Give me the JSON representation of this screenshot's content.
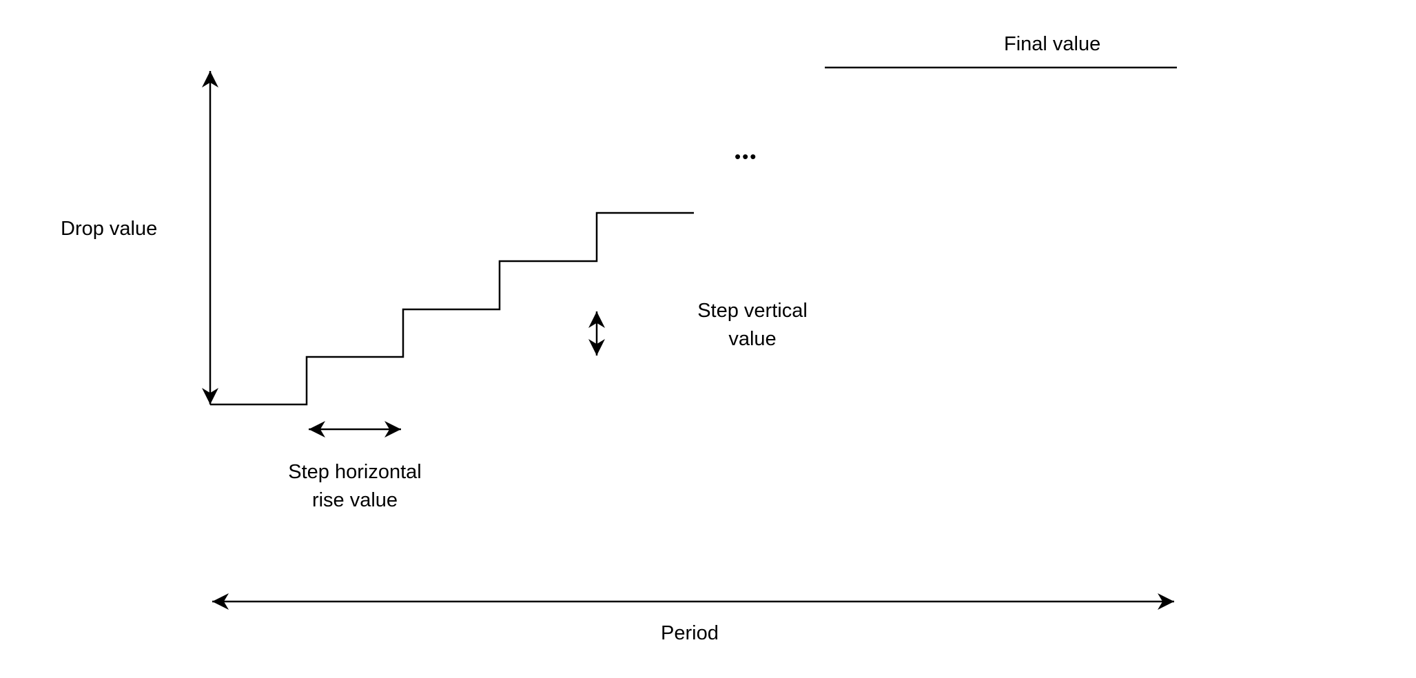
{
  "labels": {
    "final_value": "Final value",
    "drop_value": "Drop value",
    "step_vertical_line1": "Step vertical",
    "step_vertical_line2": "value",
    "step_horizontal_line1": "Step horizontal",
    "step_horizontal_line2": "rise value",
    "period": "Period",
    "ellipsis": "•••"
  },
  "colors": {
    "ink": "#000000",
    "background": "#ffffff"
  }
}
